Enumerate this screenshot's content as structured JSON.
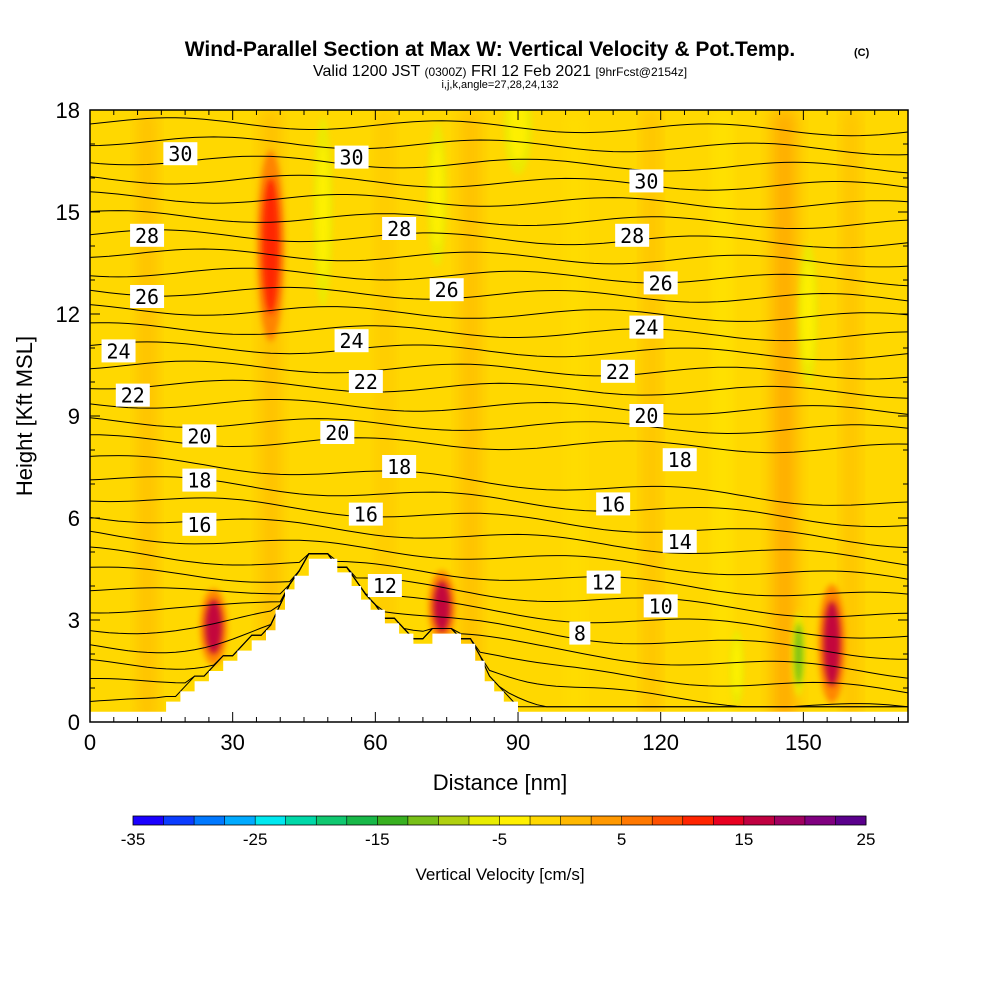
{
  "chart_data": {
    "type": "heatmap",
    "title": "Wind-Parallel Section at Max W: Vertical Velocity & Pot.Temp.",
    "title_mark": "(C)",
    "subtitle_parts": [
      "Valid 1200 JST",
      "(0300Z)",
      "FRI 12 Feb 2021",
      "[9hrFcst@2154z]"
    ],
    "subtitle2": "i,j,k,angle=27,28,24,132",
    "xlabel": "Distance [nm]",
    "ylabel": "Height [Kft MSL]",
    "xlim": [
      0,
      172
    ],
    "ylim": [
      0,
      18
    ],
    "xticks": [
      "0",
      "30",
      "60",
      "90",
      "120",
      "150"
    ],
    "xtick_values": [
      0,
      30,
      60,
      90,
      120,
      150
    ],
    "yticks": [
      "0",
      "3",
      "6",
      "9",
      "12",
      "15",
      "18"
    ],
    "ytick_values": [
      0,
      3,
      6,
      9,
      12,
      15,
      18
    ],
    "colorbar": {
      "title": "Vertical Velocity [cm/s]",
      "min": -35,
      "max": 25,
      "step": 2.5,
      "tick_labels": [
        "-35",
        "-25",
        "-15",
        "-5",
        "5",
        "15",
        "25"
      ],
      "tick_values": [
        -35,
        -25,
        -15,
        -5,
        5,
        15,
        25
      ],
      "colors": [
        "#1a00ff",
        "#0a3cff",
        "#0078ff",
        "#00aaff",
        "#00e8f0",
        "#00d8a8",
        "#10c870",
        "#18b848",
        "#38b020",
        "#78c018",
        "#b0d010",
        "#e8ec00",
        "#fff000",
        "#ffd800",
        "#ffb800",
        "#ff9800",
        "#ff7800",
        "#ff5000",
        "#ff2400",
        "#e80020",
        "#c00040",
        "#a00060",
        "#800080",
        "#5a008c"
      ]
    },
    "theta_contours": {
      "levels": [
        8,
        10,
        12,
        14,
        16,
        18,
        20,
        22,
        24,
        26,
        28,
        30
      ],
      "labels": [
        {
          "text": "30",
          "x": 19,
          "y": 16.7
        },
        {
          "text": "30",
          "x": 55,
          "y": 16.6
        },
        {
          "text": "30",
          "x": 117,
          "y": 15.9
        },
        {
          "text": "28",
          "x": 12,
          "y": 14.3
        },
        {
          "text": "28",
          "x": 65,
          "y": 14.5
        },
        {
          "text": "28",
          "x": 114,
          "y": 14.3
        },
        {
          "text": "26",
          "x": 12,
          "y": 12.5
        },
        {
          "text": "26",
          "x": 75,
          "y": 12.7
        },
        {
          "text": "26",
          "x": 120,
          "y": 12.9
        },
        {
          "text": "24",
          "x": 6,
          "y": 10.9
        },
        {
          "text": "24",
          "x": 55,
          "y": 11.2
        },
        {
          "text": "24",
          "x": 117,
          "y": 11.6
        },
        {
          "text": "22",
          "x": 9,
          "y": 9.6
        },
        {
          "text": "22",
          "x": 58,
          "y": 10
        },
        {
          "text": "22",
          "x": 111,
          "y": 10.3
        },
        {
          "text": "20",
          "x": 23,
          "y": 8.4
        },
        {
          "text": "20",
          "x": 52,
          "y": 8.5
        },
        {
          "text": "20",
          "x": 117,
          "y": 9
        },
        {
          "text": "18",
          "x": 23,
          "y": 7.1
        },
        {
          "text": "18",
          "x": 65,
          "y": 7.5
        },
        {
          "text": "18",
          "x": 124,
          "y": 7.7
        },
        {
          "text": "16",
          "x": 23,
          "y": 5.8
        },
        {
          "text": "16",
          "x": 58,
          "y": 6.1
        },
        {
          "text": "16",
          "x": 110,
          "y": 6.4
        },
        {
          "text": "14",
          "x": 124,
          "y": 5.3
        },
        {
          "text": "12",
          "x": 62,
          "y": 4
        },
        {
          "text": "12",
          "x": 108,
          "y": 4.1
        },
        {
          "text": "10",
          "x": 120,
          "y": 3.4
        },
        {
          "text": "8",
          "x": 103,
          "y": 2.6
        }
      ]
    },
    "velocity_features": [
      {
        "x": 26,
        "y": 2.8,
        "w": 3,
        "h": 1.6,
        "value": 15
      },
      {
        "x": 74,
        "y": 3.4,
        "w": 3,
        "h": 1.5,
        "value": 15
      },
      {
        "x": 156,
        "y": 2.3,
        "w": 3,
        "h": 2.5,
        "value": 15
      },
      {
        "x": 149,
        "y": 2,
        "w": 1.5,
        "h": 1.8,
        "value": -12
      },
      {
        "x": 136,
        "y": 1.6,
        "w": 1.5,
        "h": 1.6,
        "value": -5
      },
      {
        "x": 38,
        "y": 14,
        "w": 3,
        "h": 4,
        "value": 10
      },
      {
        "x": 49,
        "y": 15,
        "w": 2,
        "h": 4,
        "value": -5
      },
      {
        "x": 151,
        "y": 12,
        "w": 2,
        "h": 3,
        "value": -5
      },
      {
        "x": 73,
        "y": 15.5,
        "w": 2,
        "h": 3,
        "value": -3
      },
      {
        "x": 90,
        "y": 17.5,
        "w": 3,
        "h": 2,
        "value": -3
      }
    ],
    "terrain": [
      [
        0,
        0.3
      ],
      [
        16,
        0.3
      ],
      [
        16,
        0.6
      ],
      [
        19,
        0.6
      ],
      [
        19,
        0.9
      ],
      [
        22,
        0.9
      ],
      [
        22,
        1.2
      ],
      [
        25,
        1.2
      ],
      [
        25,
        1.5
      ],
      [
        28,
        1.5
      ],
      [
        28,
        1.8
      ],
      [
        31,
        1.8
      ],
      [
        31,
        2.1
      ],
      [
        34,
        2.1
      ],
      [
        34,
        2.4
      ],
      [
        37,
        2.4
      ],
      [
        37,
        2.7
      ],
      [
        39,
        2.7
      ],
      [
        39,
        3.3
      ],
      [
        41,
        3.3
      ],
      [
        41,
        3.9
      ],
      [
        43,
        3.9
      ],
      [
        43,
        4.3
      ],
      [
        46,
        4.3
      ],
      [
        46,
        4.8
      ],
      [
        52,
        4.8
      ],
      [
        52,
        4.4
      ],
      [
        55,
        4.4
      ],
      [
        55,
        4.0
      ],
      [
        57,
        4.0
      ],
      [
        57,
        3.6
      ],
      [
        59,
        3.6
      ],
      [
        59,
        3.3
      ],
      [
        62,
        3.3
      ],
      [
        62,
        2.9
      ],
      [
        65,
        2.9
      ],
      [
        65,
        2.6
      ],
      [
        68,
        2.6
      ],
      [
        68,
        2.3
      ],
      [
        72,
        2.3
      ],
      [
        72,
        2.6
      ],
      [
        78,
        2.6
      ],
      [
        78,
        2.3
      ],
      [
        81,
        2.3
      ],
      [
        81,
        1.8
      ],
      [
        83,
        1.8
      ],
      [
        83,
        1.2
      ],
      [
        85,
        1.2
      ],
      [
        85,
        0.9
      ],
      [
        87,
        0.9
      ],
      [
        87,
        0.6
      ],
      [
        90,
        0.6
      ],
      [
        90,
        0.3
      ],
      [
        172,
        0.3
      ]
    ]
  }
}
